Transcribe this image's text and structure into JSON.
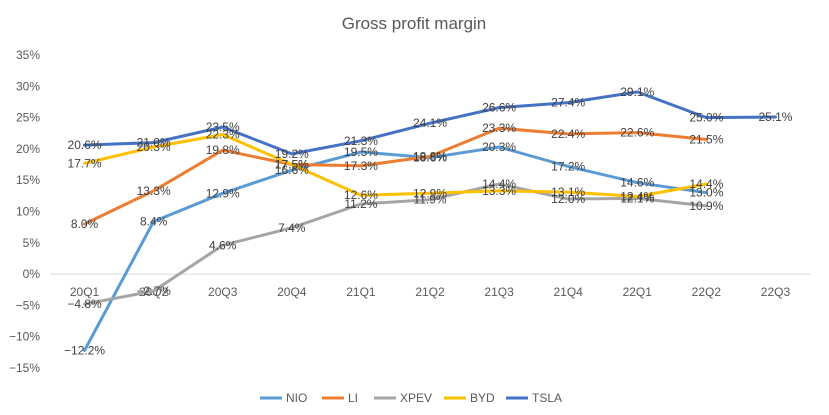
{
  "chart_data": {
    "type": "line",
    "title": "Gross profit margin",
    "categories": [
      "20Q1",
      "20Q2",
      "20Q3",
      "20Q4",
      "21Q1",
      "21Q2",
      "21Q3",
      "21Q4",
      "22Q1",
      "22Q2",
      "22Q3"
    ],
    "ylim": [
      -15,
      35
    ],
    "yticks": [
      -15,
      -10,
      -5,
      0,
      5,
      10,
      15,
      20,
      25,
      30,
      35
    ],
    "ytick_labels": [
      "−15%",
      "−10%",
      "−5%",
      "0%",
      "5%",
      "10%",
      "15%",
      "20%",
      "25%",
      "30%",
      "35%"
    ],
    "grid": false,
    "legend_position": "bottom",
    "series": [
      {
        "name": "NIO",
        "color": "#5B9BD5",
        "values": [
          -12.2,
          8.4,
          12.9,
          16.6,
          19.5,
          18.6,
          20.3,
          17.2,
          14.6,
          13.0,
          null
        ],
        "labels": [
          "−12.2%",
          "8.4%",
          "12.9%",
          "16.6%",
          "19.5%",
          "18.6%",
          "20.3%",
          "17.2%",
          "14.6%",
          "13.0%",
          null
        ]
      },
      {
        "name": "LI",
        "color": "#ED7D31",
        "values": [
          8.0,
          13.3,
          19.8,
          17.5,
          17.3,
          18.8,
          23.3,
          22.4,
          22.6,
          21.5,
          null
        ],
        "labels": [
          "8.0%",
          "13.3%",
          "19.8%",
          "17.5%",
          "17.3%",
          "18.8%",
          "23.3%",
          "22.4%",
          "22.6%",
          "21.5%",
          null
        ]
      },
      {
        "name": "XPEV",
        "color": "#A5A5A5",
        "values": [
          -4.8,
          -2.7,
          4.6,
          7.4,
          11.2,
          11.9,
          14.4,
          12.0,
          12.1,
          10.9,
          null
        ],
        "labels": [
          "−4.8%",
          "−2.7%",
          "4.6%",
          "7.4%",
          "11.2%",
          "11.9%",
          "14.4%",
          "12.0%",
          "12.1%",
          "10.9%",
          null
        ]
      },
      {
        "name": "BYD",
        "color": "#FFC000",
        "values": [
          17.7,
          20.3,
          22.3,
          17.5,
          12.6,
          12.9,
          13.3,
          13.1,
          12.4,
          14.4,
          null
        ],
        "labels": [
          "17.7%",
          "20.3%",
          "22.3%",
          "17.5%",
          "12.6%",
          "12.9%",
          "13.3%",
          "13.1%",
          "12.4%",
          "14.4%",
          null
        ]
      },
      {
        "name": "TSLA",
        "color": "#4472C4",
        "values": [
          20.6,
          21.0,
          23.5,
          19.2,
          21.3,
          24.1,
          26.6,
          27.4,
          29.1,
          25.0,
          25.1
        ],
        "labels": [
          "20.6%",
          "21.0%",
          "23.5%",
          "19.2%",
          "21.3%",
          "24.1%",
          "26.6%",
          "27.4%",
          "29.1%",
          "25.0%",
          "25.1%"
        ]
      }
    ]
  }
}
